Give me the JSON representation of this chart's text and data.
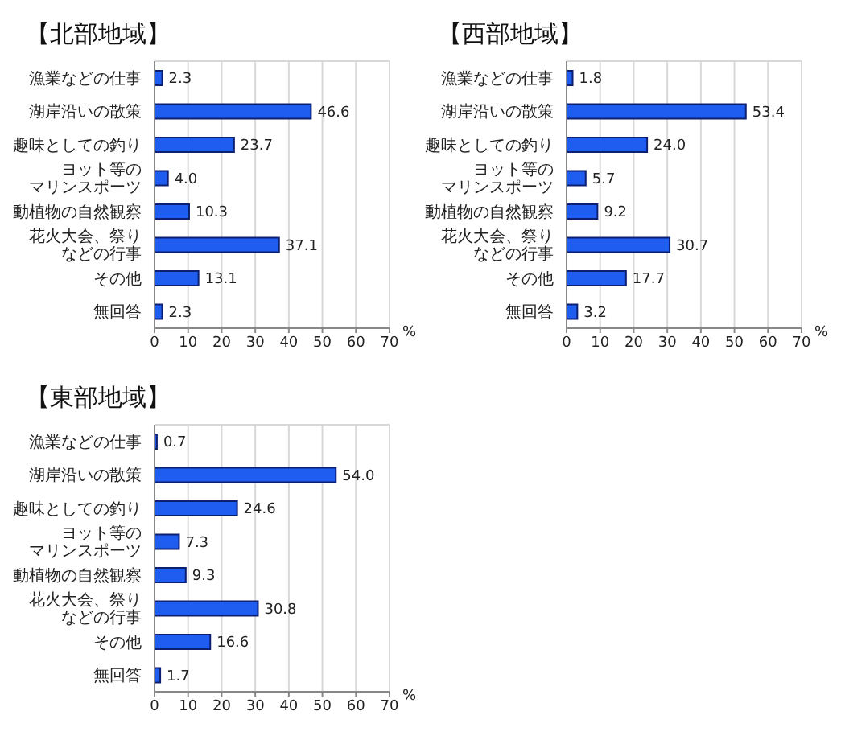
{
  "chart_data": [
    {
      "type": "bar",
      "orientation": "horizontal",
      "title": "【北部地域】",
      "categories": [
        "漁業などの仕事",
        "湖岸沿いの散策",
        "趣味としての釣り",
        "ヨット等のマリンスポーツ",
        "動植物の自然観察",
        "花火大会、祭りなどの行事",
        "その他",
        "無回答"
      ],
      "values": [
        2.3,
        46.6,
        23.7,
        4.0,
        10.3,
        37.1,
        13.1,
        2.3
      ],
      "value_labels": [
        "2.3",
        "46.6",
        "23.7",
        "4.0",
        "10.3",
        "37.1",
        "13.1",
        "2.3"
      ],
      "color": "#1f5cf0",
      "xlim": [
        0,
        70
      ],
      "xticks": [
        0,
        10,
        20,
        30,
        40,
        50,
        60,
        70
      ],
      "xlabel": "%",
      "grid": "x"
    },
    {
      "type": "bar",
      "orientation": "horizontal",
      "title": "【西部地域】",
      "categories": [
        "漁業などの仕事",
        "湖岸沿いの散策",
        "趣味としての釣り",
        "ヨット等のマリンスポーツ",
        "動植物の自然観察",
        "花火大会、祭りなどの行事",
        "その他",
        "無回答"
      ],
      "values": [
        1.8,
        53.4,
        24.0,
        5.7,
        9.2,
        30.7,
        17.7,
        3.2
      ],
      "value_labels": [
        "1.8",
        "53.4",
        "24.0",
        "5.7",
        "9.2",
        "30.7",
        "17.7",
        "3.2"
      ],
      "color": "#1f5cf0",
      "xlim": [
        0,
        70
      ],
      "xticks": [
        0,
        10,
        20,
        30,
        40,
        50,
        60,
        70
      ],
      "xlabel": "%",
      "grid": "x"
    },
    {
      "type": "bar",
      "orientation": "horizontal",
      "title": "【東部地域】",
      "categories": [
        "漁業などの仕事",
        "湖岸沿いの散策",
        "趣味としての釣り",
        "ヨット等のマリンスポーツ",
        "動植物の自然観察",
        "花火大会、祭りなどの行事",
        "その他",
        "無回答"
      ],
      "values": [
        0.7,
        54.0,
        24.6,
        7.3,
        9.3,
        30.8,
        16.6,
        1.7
      ],
      "value_labels": [
        "0.7",
        "54.0",
        "24.6",
        "7.3",
        "9.3",
        "30.8",
        "16.6",
        "1.7"
      ],
      "color": "#1f5cf0",
      "xlim": [
        0,
        70
      ],
      "xticks": [
        0,
        10,
        20,
        30,
        40,
        50,
        60,
        70
      ],
      "xlabel": "%",
      "grid": "x"
    }
  ]
}
